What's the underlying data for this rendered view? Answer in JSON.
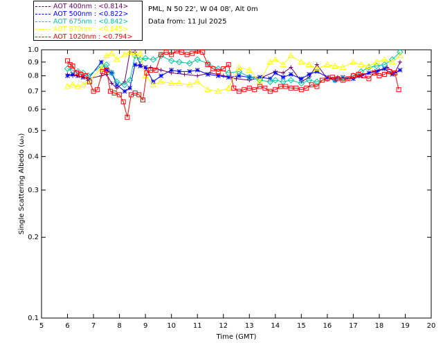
{
  "header": {
    "site": "PML, N 50 22', W 04 08', Alt 0m",
    "date": "Data from: 11 Jul 2025"
  },
  "chart_data": {
    "type": "scatter",
    "xlabel": "Time (GMT)",
    "ylabel": "Single Scattering Albedo (ω₀)",
    "xlim": [
      5,
      20
    ],
    "ylim": [
      0.1,
      1.0
    ],
    "y_scale": "log",
    "x_ticks": [
      "5",
      "6",
      "7",
      "8",
      "9",
      "10",
      "11",
      "12",
      "13",
      "14",
      "15",
      "16",
      "17",
      "18",
      "19",
      "20"
    ],
    "y_ticks": [
      "0.1",
      "0.2",
      "0.3",
      "0.4",
      "0.5",
      "0.6",
      "0.7",
      "0.8",
      "0.9",
      "1.0"
    ],
    "legend_position": "top-left",
    "series": [
      {
        "name": "AOT  400nm : <0.814>",
        "color": "#6a006a",
        "marker": "plus",
        "x": [
          6.0,
          6.2,
          6.4,
          6.6,
          6.8,
          7.3,
          7.5,
          7.7,
          7.9,
          8.2,
          8.4,
          8.6,
          8.8,
          9.0,
          9.2,
          9.6,
          10.0,
          10.5,
          11.0,
          11.5,
          12.0,
          12.5,
          13.0,
          13.5,
          14.0,
          14.3,
          14.6,
          15.0,
          15.3,
          15.6,
          16.0,
          16.4,
          16.8,
          17.2,
          17.6,
          18.0,
          18.3,
          18.6,
          18.8
        ],
        "y": [
          0.81,
          0.8,
          0.8,
          0.79,
          0.78,
          0.8,
          0.81,
          0.75,
          0.72,
          0.76,
          0.98,
          0.98,
          0.88,
          0.85,
          0.86,
          0.84,
          0.82,
          0.81,
          0.8,
          0.82,
          0.8,
          0.78,
          0.77,
          0.79,
          0.83,
          0.82,
          0.86,
          0.76,
          0.79,
          0.88,
          0.78,
          0.79,
          0.78,
          0.8,
          0.82,
          0.84,
          0.86,
          0.82,
          0.9
        ]
      },
      {
        "name": "AOT  500nm : <0.822>",
        "color": "#0000ff",
        "marker": "star",
        "x": [
          6.0,
          6.2,
          6.4,
          6.6,
          6.8,
          7.3,
          7.5,
          7.7,
          7.9,
          8.2,
          8.4,
          8.6,
          8.8,
          9.0,
          9.3,
          9.6,
          10.0,
          10.3,
          10.7,
          11.0,
          11.4,
          11.8,
          12.2,
          12.6,
          13.0,
          13.4,
          13.8,
          14.0,
          14.3,
          14.6,
          15.0,
          15.3,
          15.6,
          16.0,
          16.3,
          16.6,
          17.0,
          17.3,
          17.6,
          17.9,
          18.2,
          18.5,
          18.8
        ],
        "y": [
          0.8,
          0.81,
          0.8,
          0.79,
          0.78,
          0.9,
          0.84,
          0.82,
          0.74,
          0.7,
          0.72,
          0.88,
          0.87,
          0.86,
          0.76,
          0.8,
          0.84,
          0.83,
          0.83,
          0.84,
          0.81,
          0.8,
          0.79,
          0.8,
          0.79,
          0.79,
          0.78,
          0.82,
          0.79,
          0.81,
          0.78,
          0.81,
          0.83,
          0.79,
          0.77,
          0.79,
          0.78,
          0.8,
          0.82,
          0.83,
          0.85,
          0.81,
          0.84
        ]
      },
      {
        "name": "AOT  675nm : <0.842>",
        "color": "#00c8a0",
        "marker": "diamond",
        "x": [
          6.0,
          6.2,
          6.4,
          6.6,
          6.8,
          7.3,
          7.5,
          7.7,
          7.9,
          8.2,
          8.4,
          8.6,
          8.8,
          9.0,
          9.3,
          9.6,
          10.0,
          10.3,
          10.7,
          11.0,
          11.4,
          11.8,
          12.2,
          12.6,
          13.0,
          13.4,
          13.8,
          14.0,
          14.3,
          14.6,
          15.0,
          15.3,
          15.6,
          16.0,
          16.3,
          16.6,
          17.0,
          17.3,
          17.6,
          17.9,
          18.2,
          18.5,
          18.8
        ],
        "y": [
          0.85,
          0.84,
          0.83,
          0.82,
          0.8,
          0.87,
          0.88,
          0.82,
          0.76,
          0.74,
          0.77,
          0.95,
          0.92,
          0.93,
          0.92,
          0.95,
          0.91,
          0.9,
          0.89,
          0.92,
          0.89,
          0.85,
          0.82,
          0.83,
          0.79,
          0.77,
          0.76,
          0.77,
          0.76,
          0.77,
          0.75,
          0.77,
          0.76,
          0.78,
          0.77,
          0.78,
          0.8,
          0.83,
          0.86,
          0.87,
          0.88,
          0.92,
          0.98
        ]
      },
      {
        "name": "AOT  870nm : <0.845>",
        "color": "#ffff00",
        "marker": "triangle",
        "x": [
          6.0,
          6.2,
          6.4,
          6.6,
          6.8,
          7.3,
          7.5,
          7.7,
          7.9,
          8.2,
          8.4,
          8.6,
          8.8,
          9.0,
          9.3,
          9.6,
          10.0,
          10.3,
          10.7,
          11.0,
          11.4,
          11.8,
          12.2,
          12.6,
          13.0,
          13.4,
          13.8,
          14.0,
          14.3,
          14.6,
          15.0,
          15.3,
          15.6,
          16.0,
          16.3,
          16.6,
          17.0,
          17.3,
          17.6,
          17.9,
          18.2,
          18.5,
          18.8
        ],
        "y": [
          0.73,
          0.74,
          0.73,
          0.74,
          0.76,
          0.85,
          0.95,
          0.97,
          0.92,
          0.96,
          0.98,
          0.96,
          0.97,
          0.8,
          0.74,
          0.76,
          0.75,
          0.75,
          0.74,
          0.76,
          0.71,
          0.7,
          0.72,
          0.86,
          0.84,
          0.76,
          0.9,
          0.92,
          0.88,
          0.95,
          0.9,
          0.88,
          0.85,
          0.88,
          0.87,
          0.86,
          0.9,
          0.88,
          0.87,
          0.9,
          0.92,
          0.9,
          0.95
        ]
      },
      {
        "name": "AOT 1020nm : <0.794>",
        "color": "#ff0000",
        "marker": "square",
        "x": [
          6.0,
          6.1,
          6.2,
          6.35,
          6.5,
          6.7,
          6.85,
          7.0,
          7.15,
          7.35,
          7.5,
          7.65,
          7.8,
          8.0,
          8.15,
          8.3,
          8.45,
          8.6,
          8.75,
          8.9,
          9.05,
          9.2,
          9.4,
          9.6,
          9.8,
          10.0,
          10.2,
          10.4,
          10.6,
          10.8,
          11.0,
          11.2,
          11.4,
          11.6,
          11.8,
          12.0,
          12.2,
          12.4,
          12.6,
          12.8,
          13.0,
          13.2,
          13.4,
          13.6,
          13.8,
          14.0,
          14.2,
          14.4,
          14.6,
          14.8,
          15.0,
          15.2,
          15.4,
          15.6,
          15.8,
          16.0,
          16.2,
          16.4,
          16.6,
          16.8,
          17.0,
          17.2,
          17.4,
          17.6,
          17.8,
          18.0,
          18.2,
          18.4,
          18.6,
          18.75
        ],
        "y": [
          0.91,
          0.88,
          0.87,
          0.82,
          0.81,
          0.8,
          0.76,
          0.7,
          0.71,
          0.83,
          0.84,
          0.7,
          0.69,
          0.68,
          0.64,
          0.56,
          0.68,
          0.69,
          0.68,
          0.65,
          0.82,
          0.84,
          0.84,
          0.96,
          0.98,
          0.96,
          0.99,
          0.98,
          0.96,
          0.97,
          0.99,
          0.98,
          0.88,
          0.85,
          0.83,
          0.85,
          0.88,
          0.72,
          0.7,
          0.71,
          0.72,
          0.71,
          0.73,
          0.72,
          0.7,
          0.71,
          0.73,
          0.73,
          0.72,
          0.72,
          0.71,
          0.72,
          0.74,
          0.73,
          0.77,
          0.78,
          0.79,
          0.78,
          0.77,
          0.78,
          0.8,
          0.81,
          0.8,
          0.78,
          0.82,
          0.8,
          0.81,
          0.83,
          0.82,
          0.71
        ]
      }
    ]
  }
}
